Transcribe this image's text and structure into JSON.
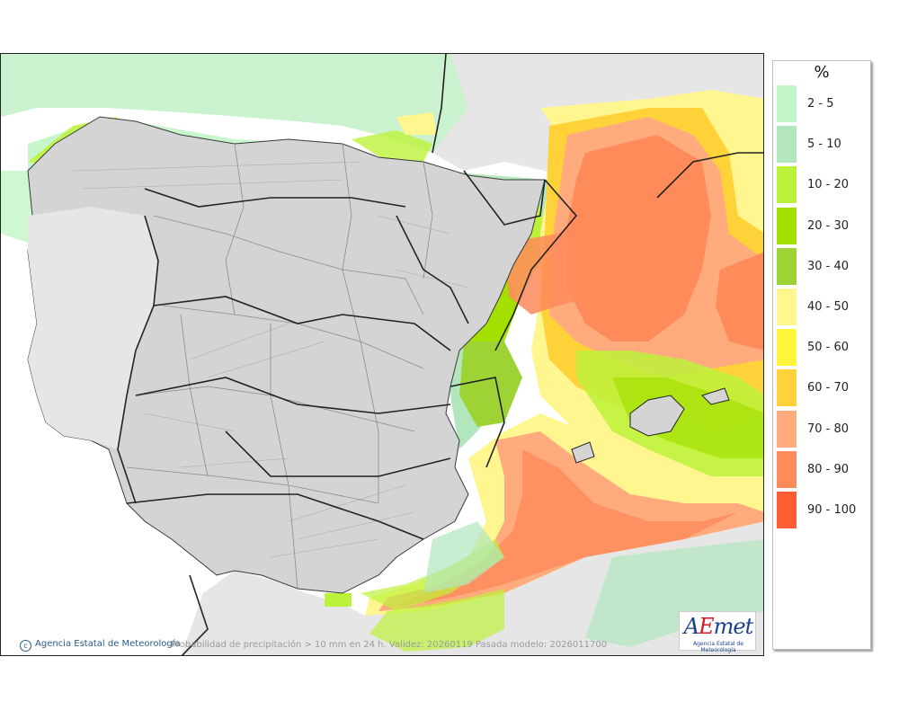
{
  "legend": {
    "unit": "%",
    "items": [
      {
        "label": "2 - 5",
        "color": "#c2f5c7"
      },
      {
        "label": "5 - 10",
        "color": "#b2e6bc"
      },
      {
        "label": "10 - 20",
        "color": "#bdf23a"
      },
      {
        "label": "20 - 30",
        "color": "#a3e000"
      },
      {
        "label": "30 - 40",
        "color": "#9ed336"
      },
      {
        "label": "40 - 50",
        "color": "#fff68f"
      },
      {
        "label": "50 - 60",
        "color": "#fff53b"
      },
      {
        "label": "60 - 70",
        "color": "#ffd23a"
      },
      {
        "label": "70 - 80",
        "color": "#ffab7e"
      },
      {
        "label": "80 - 90",
        "color": "#ff8a5a"
      },
      {
        "label": "90 - 100",
        "color": "#ff5e34"
      }
    ]
  },
  "credit": "Agencia Estatal de Meteorología",
  "caption": "Probabilidad de precipitación > 10 mm en 24 h. Validez: 20260119 Pasada modelo: 2026011700",
  "logo": {
    "text_a": "A",
    "text_e": "E",
    "text_rest": "met",
    "subtitle": "Agencia Estatal de Meteorología"
  },
  "colors": {
    "land": "#d4d4d4",
    "foreign_land": "#e6e6e6",
    "sea": "#ffffff",
    "border": "#222222",
    "region_border": "#8c8c8c"
  }
}
